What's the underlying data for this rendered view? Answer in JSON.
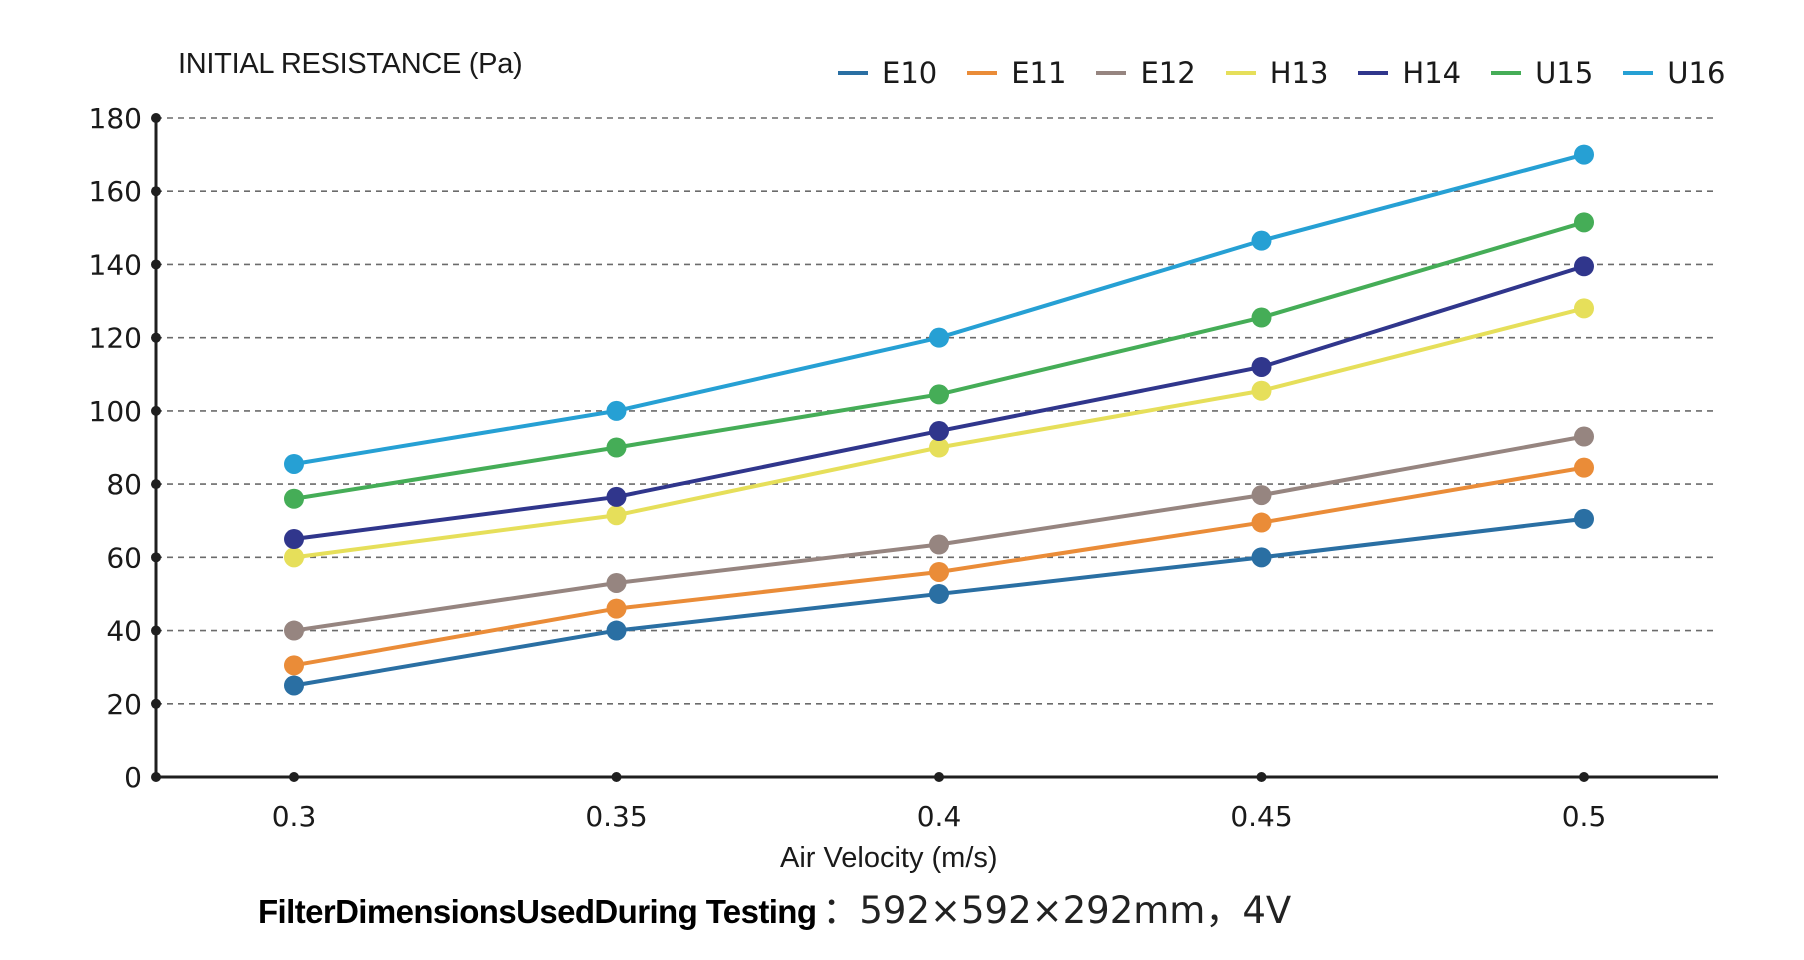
{
  "chart_data": {
    "type": "line",
    "title": "",
    "ylabel": "INITIAL RESISTANCE (Pa)",
    "xlabel": "Air Velocity (m/s)",
    "x": [
      0.3,
      0.35,
      0.4,
      0.45,
      0.5
    ],
    "x_tick_labels": [
      "0.3",
      "0.35",
      "0.4",
      "0.45",
      "0.5"
    ],
    "ylim": [
      0,
      180
    ],
    "y_ticks": [
      0,
      20,
      40,
      60,
      80,
      100,
      120,
      140,
      160,
      180
    ],
    "y_tick_labels": [
      "0",
      "20",
      "40",
      "60",
      "80",
      "100",
      "120",
      "140",
      "160",
      "180"
    ],
    "grid": "horizontal dashed",
    "legend_position": "top-right",
    "series": [
      {
        "name": "E10",
        "color": "#2a6fa3",
        "values": [
          25,
          40,
          50,
          60,
          70.5
        ]
      },
      {
        "name": "E11",
        "color": "#ea8c38",
        "values": [
          30.5,
          46,
          56,
          69.5,
          84.5
        ]
      },
      {
        "name": "E12",
        "color": "#968580",
        "values": [
          40,
          53,
          63.5,
          77,
          93
        ]
      },
      {
        "name": "H13",
        "color": "#e6df5a",
        "values": [
          60,
          71.5,
          90,
          105.5,
          128
        ]
      },
      {
        "name": "H14",
        "color": "#30368c",
        "values": [
          65,
          76.5,
          94.5,
          112,
          139.5
        ]
      },
      {
        "name": "U15",
        "color": "#45ad57",
        "values": [
          76,
          90,
          104.5,
          125.5,
          151.5
        ]
      },
      {
        "name": "U16",
        "color": "#26a0d4",
        "values": [
          85.5,
          100,
          120,
          146.5,
          170
        ]
      }
    ]
  },
  "footnote": {
    "key": "FilterDimensionsUsedDuring Testing",
    "value": "：592×592×292mm，4V"
  }
}
